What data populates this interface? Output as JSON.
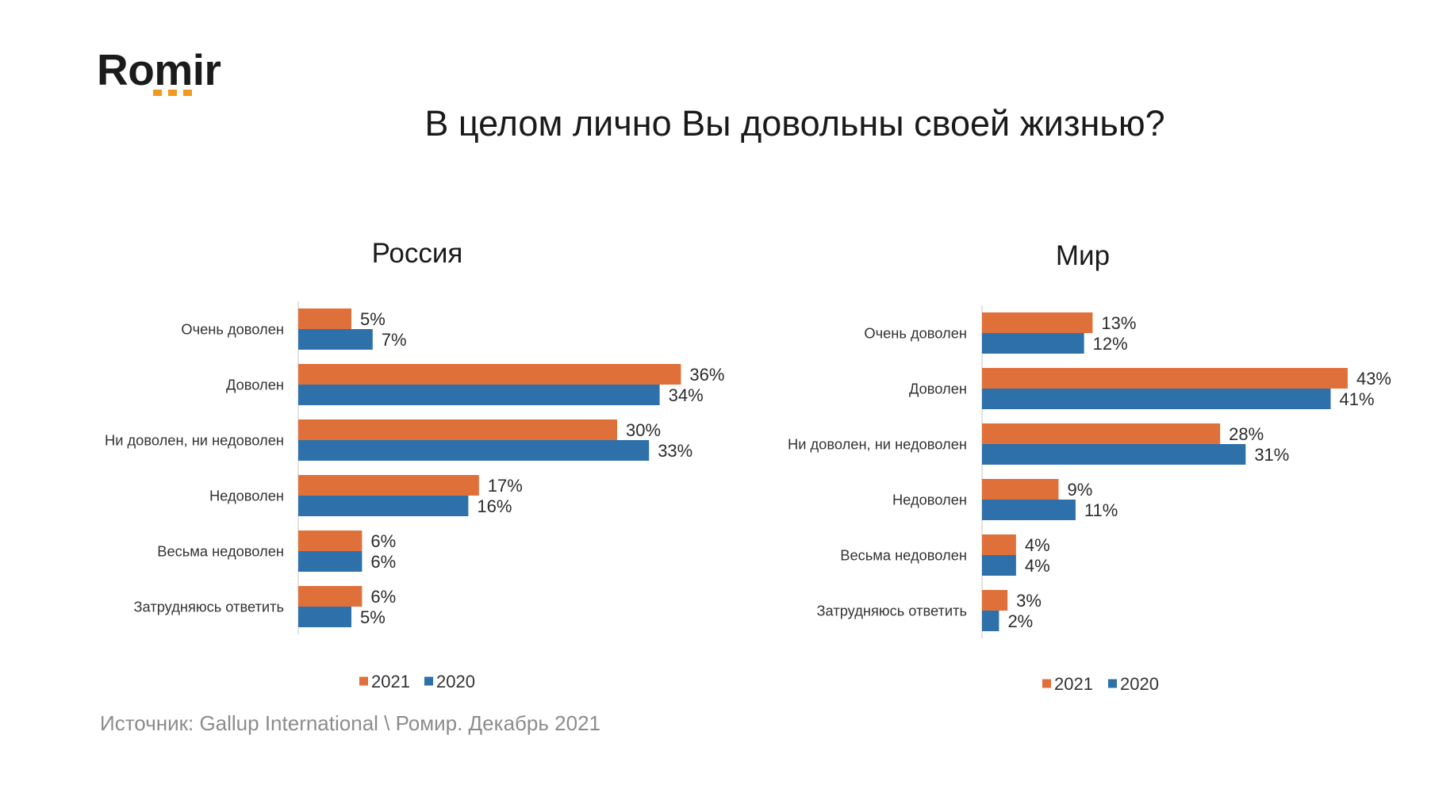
{
  "logo": {
    "text": "Romir",
    "dot_color": "#F29A1F"
  },
  "title": "В целом лично Вы довольны своей жизнью?",
  "source": "Источник: Gallup International \\ Ромир. Декабрь 2021",
  "chart_data": [
    {
      "type": "bar",
      "orientation": "horizontal",
      "title": "Россия",
      "categories": [
        "Очень доволен",
        "Доволен",
        "Ни доволен, ни недоволен",
        "Недоволен",
        "Весьма недоволен",
        "Затрудняюсь ответить"
      ],
      "series": [
        {
          "name": "2021",
          "color": "#E0703A",
          "values": [
            5,
            36,
            30,
            17,
            6,
            6
          ],
          "labels": [
            "5%",
            "36%",
            "30%",
            "17%",
            "6%",
            "6%"
          ]
        },
        {
          "name": "2020",
          "color": "#2E70AA",
          "values": [
            7,
            34,
            33,
            16,
            6,
            5
          ],
          "labels": [
            "7%",
            "34%",
            "33%",
            "16%",
            "6%",
            "5%"
          ]
        }
      ],
      "xlim": [
        0,
        40
      ],
      "grid": false,
      "legend": "bottom"
    },
    {
      "type": "bar",
      "orientation": "horizontal",
      "title": "Мир",
      "categories": [
        "Очень доволен",
        "Доволен",
        "Ни доволен, ни недоволен",
        "Недоволен",
        "Весьма недоволен",
        "Затрудняюсь ответить"
      ],
      "series": [
        {
          "name": "2021",
          "color": "#E0703A",
          "values": [
            13,
            43,
            28,
            9,
            4,
            3
          ],
          "labels": [
            "13%",
            "43%",
            "28%",
            "9%",
            "4%",
            "3%"
          ]
        },
        {
          "name": "2020",
          "color": "#2E70AA",
          "values": [
            12,
            41,
            31,
            11,
            4,
            2
          ],
          "labels": [
            "12%",
            "41%",
            "31%",
            "11%",
            "4%",
            "2%"
          ]
        }
      ],
      "xlim": [
        0,
        50
      ],
      "grid": false,
      "legend": "bottom"
    }
  ]
}
